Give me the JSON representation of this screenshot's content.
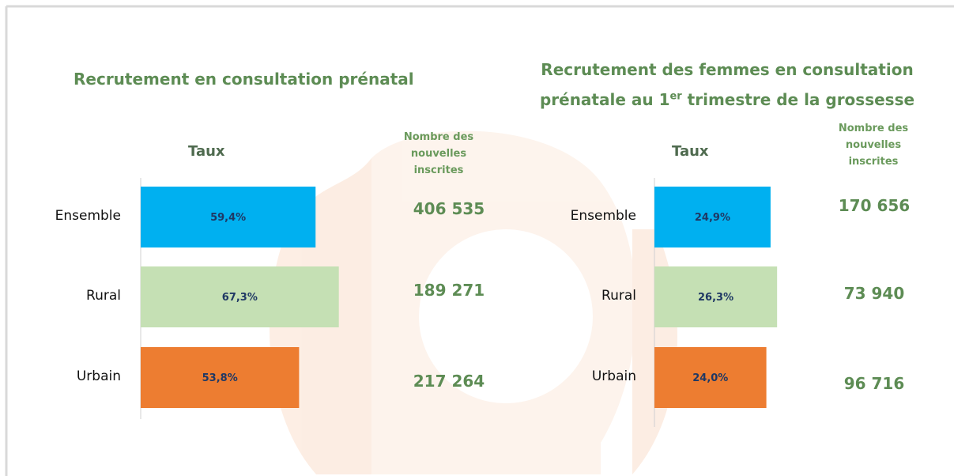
{
  "chart_data": [
    {
      "type": "bar",
      "title": "Recrutement en consultation prénatal",
      "axis_title": "Taux",
      "categories": [
        "Ensemble",
        "Rural",
        "Urbain"
      ],
      "values": [
        59.4,
        67.3,
        53.8
      ],
      "value_labels": [
        "59,4%",
        "67,3%",
        "53,8%"
      ],
      "colors": [
        "#00b0f0",
        "#c5e0b4",
        "#ed7d31"
      ],
      "xlim": [
        0,
        80
      ],
      "counts_header": "Nombre des nouvelles inscrites",
      "counts": [
        406535,
        189271,
        217264
      ],
      "count_labels": [
        "406 535",
        "189 271",
        "217 264"
      ]
    },
    {
      "type": "bar",
      "title": [
        "Recrutement des femmes en consultation prénatale au 1",
        "er",
        " trimestre de la grossesse"
      ],
      "axis_title": "Taux",
      "categories": [
        "Ensemble",
        "Rural",
        "Urbain"
      ],
      "values": [
        24.9,
        26.3,
        24.0
      ],
      "value_labels": [
        "24,9%",
        "26,3%",
        "24,0%"
      ],
      "colors": [
        "#00b0f0",
        "#c5e0b4",
        "#ed7d31"
      ],
      "xlim": [
        0,
        30
      ],
      "counts_header": "Nombre des nouvelles inscrites",
      "counts": [
        170656,
        73940,
        96716
      ],
      "count_labels": [
        "170 656",
        "73 940",
        "96 716"
      ]
    }
  ]
}
